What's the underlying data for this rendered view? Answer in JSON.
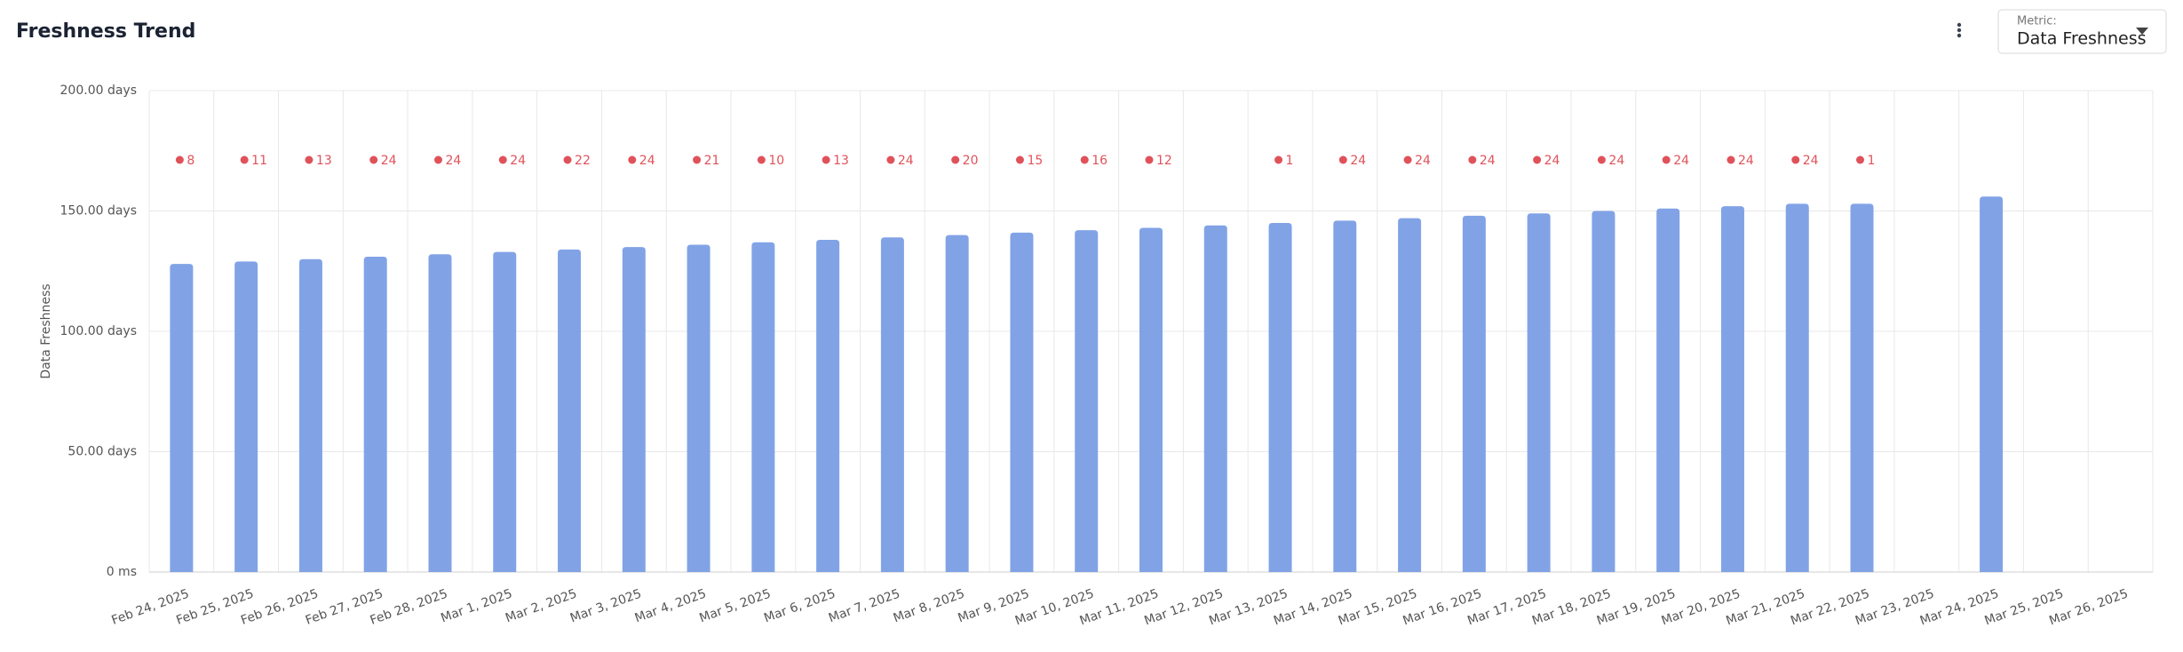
{
  "controls": {
    "metric_label": "Metric:",
    "metric_value": "Data Freshness"
  },
  "chart_data": {
    "type": "bar",
    "title": "Freshness Trend",
    "y_label": "Data Freshness",
    "color": "#81a3e6",
    "annotation_color": "#e0525a",
    "grid": true,
    "categories": [
      "Feb 24, 2025",
      "Feb 25, 2025",
      "Feb 26, 2025",
      "Feb 27, 2025",
      "Feb 28, 2025",
      "Mar 1, 2025",
      "Mar 2, 2025",
      "Mar 3, 2025",
      "Mar 4, 2025",
      "Mar 5, 2025",
      "Mar 6, 2025",
      "Mar 7, 2025",
      "Mar 8, 2025",
      "Mar 9, 2025",
      "Mar 10, 2025",
      "Mar 11, 2025",
      "Mar 12, 2025",
      "Mar 13, 2025",
      "Mar 14, 2025",
      "Mar 15, 2025",
      "Mar 16, 2025",
      "Mar 17, 2025",
      "Mar 18, 2025",
      "Mar 19, 2025",
      "Mar 20, 2025",
      "Mar 21, 2025",
      "Mar 22, 2025",
      "Mar 23, 2025",
      "Mar 24, 2025",
      "Mar 25, 2025",
      "Mar 26, 2025"
    ],
    "values": [
      128,
      129,
      130,
      131,
      132,
      133,
      134,
      135,
      136,
      137,
      138,
      139,
      140,
      141,
      142,
      143,
      144,
      145,
      146,
      147,
      148,
      149,
      150,
      151,
      152,
      153,
      153,
      null,
      156,
      null,
      null
    ],
    "annotations": [
      8,
      11,
      13,
      24,
      24,
      24,
      22,
      24,
      21,
      10,
      13,
      24,
      20,
      15,
      16,
      12,
      null,
      1,
      24,
      24,
      24,
      24,
      24,
      24,
      24,
      24,
      1,
      null,
      null,
      null,
      null
    ],
    "ylim": [
      0,
      200
    ],
    "yticks": [
      {
        "value": 0,
        "label": "0 ms"
      },
      {
        "value": 50,
        "label": "50.00 days"
      },
      {
        "value": 100,
        "label": "100.00 days"
      },
      {
        "value": 150,
        "label": "150.00 days"
      },
      {
        "value": 200,
        "label": "200.00 days"
      }
    ]
  }
}
